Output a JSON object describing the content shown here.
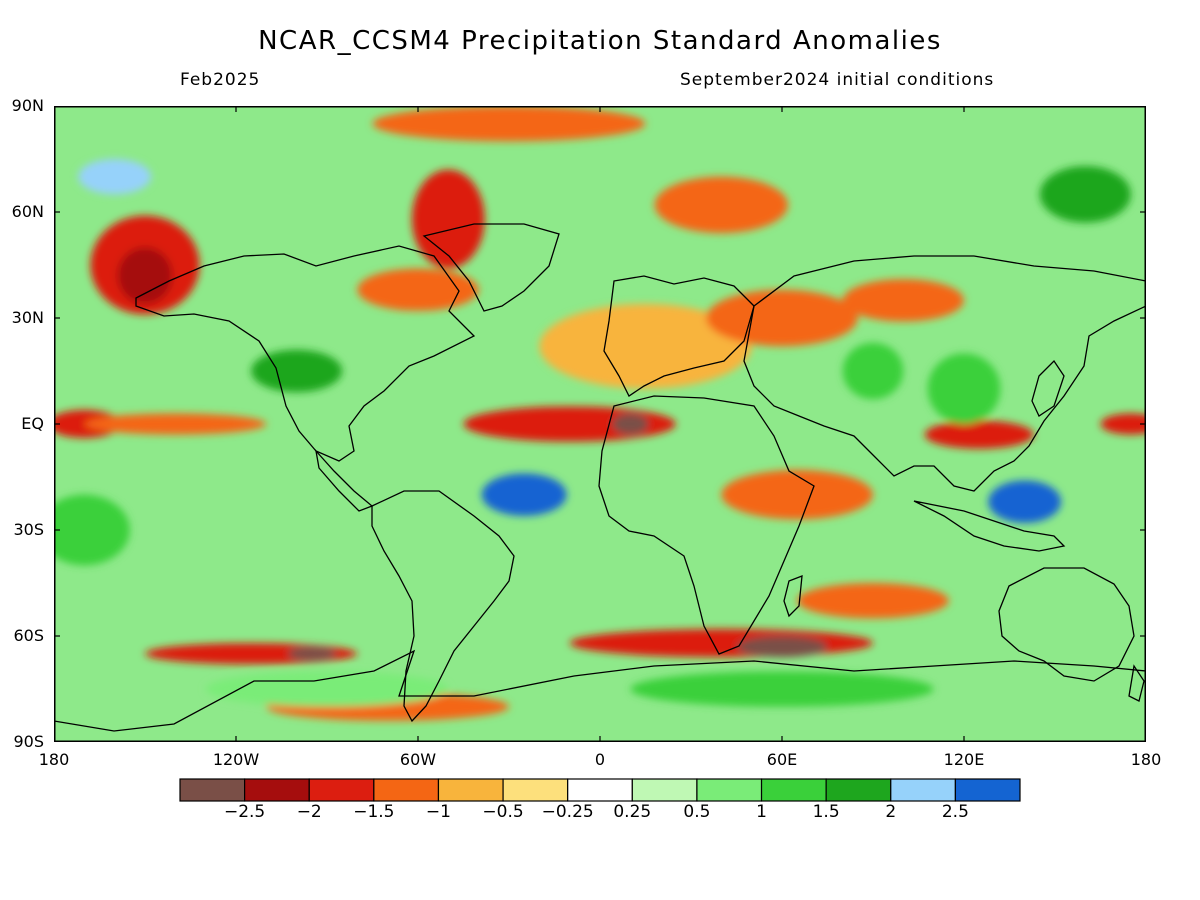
{
  "header": {
    "title": "NCAR_CCSM4 Precipitation Standard Anomalies",
    "valid_month": "Feb2025",
    "init_conditions": "September2024 initial conditions"
  },
  "map": {
    "projection": "equirectangular",
    "lon_range": [
      -180,
      180
    ],
    "lat_range": [
      -90,
      90
    ],
    "lat_ticks": [
      {
        "lat": 90,
        "label": "90N"
      },
      {
        "lat": 60,
        "label": "60N"
      },
      {
        "lat": 30,
        "label": "30N"
      },
      {
        "lat": 0,
        "label": "EQ"
      },
      {
        "lat": -30,
        "label": "30S"
      },
      {
        "lat": -60,
        "label": "60S"
      },
      {
        "lat": -90,
        "label": "90S"
      }
    ],
    "lon_ticks": [
      {
        "lon": -180,
        "label": "180"
      },
      {
        "lon": -120,
        "label": "120W"
      },
      {
        "lon": -60,
        "label": "60W"
      },
      {
        "lon": 0,
        "label": "0"
      },
      {
        "lon": 60,
        "label": "60E"
      },
      {
        "lon": 120,
        "label": "120E"
      },
      {
        "lon": 180,
        "label": "180"
      }
    ],
    "anomaly_regions": [
      {
        "lon": -150,
        "lat": 45,
        "rx": 18,
        "ry": 14,
        "level": -1.7
      },
      {
        "lon": -150,
        "lat": 42,
        "rx": 9,
        "ry": 8,
        "level": -2.2
      },
      {
        "lon": -50,
        "lat": 58,
        "rx": 12,
        "ry": 14,
        "level": -1.6
      },
      {
        "lon": -60,
        "lat": 38,
        "rx": 20,
        "ry": 6,
        "level": -1.2
      },
      {
        "lon": -30,
        "lat": 85,
        "rx": 45,
        "ry": 5,
        "level": -1.3
      },
      {
        "lon": 40,
        "lat": 62,
        "rx": 22,
        "ry": 8,
        "level": -1.3
      },
      {
        "lon": 15,
        "lat": 22,
        "rx": 35,
        "ry": 12,
        "level": -0.7
      },
      {
        "lon": 60,
        "lat": 30,
        "rx": 25,
        "ry": 8,
        "level": -1.3
      },
      {
        "lon": 100,
        "lat": 35,
        "rx": 20,
        "ry": 6,
        "level": -1.2
      },
      {
        "lon": -170,
        "lat": 0,
        "rx": 12,
        "ry": 4,
        "level": -1.7
      },
      {
        "lon": -140,
        "lat": 0,
        "rx": 30,
        "ry": 3,
        "level": -1.0
      },
      {
        "lon": -10,
        "lat": 0,
        "rx": 35,
        "ry": 5,
        "level": -1.8
      },
      {
        "lon": 10,
        "lat": 0,
        "rx": 6,
        "ry": 3,
        "level": -2.6
      },
      {
        "lon": 125,
        "lat": -3,
        "rx": 18,
        "ry": 4,
        "level": -1.7
      },
      {
        "lon": 175,
        "lat": 0,
        "rx": 10,
        "ry": 3,
        "level": -1.7
      },
      {
        "lon": 65,
        "lat": -20,
        "rx": 25,
        "ry": 7,
        "level": -1.0
      },
      {
        "lon": 90,
        "lat": -50,
        "rx": 25,
        "ry": 5,
        "level": -1.3
      },
      {
        "lon": 40,
        "lat": -62,
        "rx": 50,
        "ry": 4,
        "level": -1.8
      },
      {
        "lon": 60,
        "lat": -63,
        "rx": 15,
        "ry": 3,
        "level": -2.6
      },
      {
        "lon": -115,
        "lat": -65,
        "rx": 35,
        "ry": 3,
        "level": -1.7
      },
      {
        "lon": -95,
        "lat": -65,
        "rx": 8,
        "ry": 2,
        "level": -2.6
      },
      {
        "lon": -70,
        "lat": -80,
        "rx": 40,
        "ry": 4,
        "level": -1.2
      },
      {
        "lon": -25,
        "lat": -20,
        "rx": 14,
        "ry": 6,
        "level": 2.6
      },
      {
        "lon": 140,
        "lat": -22,
        "rx": 12,
        "ry": 6,
        "level": 2.6
      },
      {
        "lon": 90,
        "lat": 15,
        "rx": 10,
        "ry": 8,
        "level": 1.3
      },
      {
        "lon": 160,
        "lat": 65,
        "rx": 15,
        "ry": 8,
        "level": 1.6
      },
      {
        "lon": -160,
        "lat": 70,
        "rx": 12,
        "ry": 5,
        "level": 2.2
      },
      {
        "lon": -100,
        "lat": 15,
        "rx": 15,
        "ry": 6,
        "level": 1.6
      },
      {
        "lon": -170,
        "lat": -30,
        "rx": 15,
        "ry": 10,
        "level": 1.2
      },
      {
        "lon": 120,
        "lat": 10,
        "rx": 12,
        "ry": 10,
        "level": 1.3
      },
      {
        "lon": -90,
        "lat": -75,
        "rx": 40,
        "ry": 5,
        "level": 0.6
      },
      {
        "lon": 60,
        "lat": -75,
        "rx": 50,
        "ry": 5,
        "level": 1.2
      }
    ]
  },
  "colorbar": {
    "bins": [
      {
        "color": "#7a4f47"
      },
      {
        "color": "#a50d0d"
      },
      {
        "color": "#dc1e10"
      },
      {
        "color": "#f46614"
      },
      {
        "color": "#f8b43c"
      },
      {
        "color": "#fde07c"
      },
      {
        "color": "#ffffff"
      },
      {
        "color": "#bff8b4"
      },
      {
        "color": "#7aec78"
      },
      {
        "color": "#3ad03a"
      },
      {
        "color": "#1ea61e"
      },
      {
        "color": "#96d2fa"
      },
      {
        "color": "#1464d2"
      }
    ],
    "labels": [
      "−2.5",
      "−2",
      "−1.5",
      "−1",
      "−0.5",
      "−0.25",
      "0.25",
      "0.5",
      "1",
      "1.5",
      "2",
      "2.5"
    ],
    "label_values": [
      -2.5,
      -2,
      -1.5,
      -1,
      -0.5,
      -0.25,
      0.25,
      0.5,
      1,
      1.5,
      2,
      2.5
    ]
  }
}
